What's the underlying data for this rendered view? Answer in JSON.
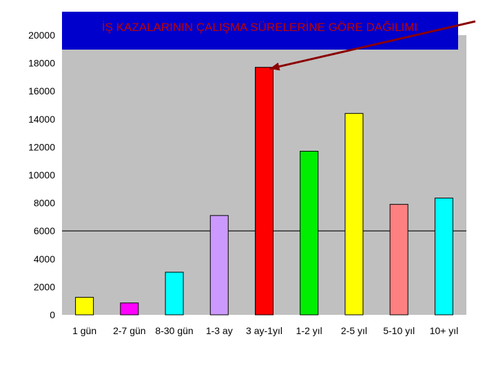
{
  "chart_data": {
    "type": "bar",
    "title": "İŞ KAZALARININ ÇALIŞMA SÜRELERİNE GÖRE DAĞILIMI",
    "categories": [
      "1 gün",
      "2-7 gün",
      "8-30 gün",
      "1-3 ay",
      "3 ay-1yıl",
      "1-2 yıl",
      "2-5 yıl",
      "5-10 yıl",
      "10+ yıl"
    ],
    "values": [
      1250,
      850,
      3050,
      7100,
      17700,
      11700,
      14400,
      7900,
      8350
    ],
    "bar_colors": [
      "#ffff00",
      "#ff00ff",
      "#00ffff",
      "#cc99ff",
      "#ff0000",
      "#00ee00",
      "#ffff00",
      "#ff8080",
      "#00ffff"
    ],
    "ylim": [
      0,
      20000
    ],
    "yticks": [
      "0",
      "2000",
      "4000",
      "6000",
      "8000",
      "10000",
      "12000",
      "14000",
      "16000",
      "18000",
      "20000"
    ],
    "gridlines": [
      6000
    ],
    "plot_background": "#c0c0c0",
    "title_background": "#0000cc",
    "title_color": "#c00000",
    "arrow_color": "#8b0000",
    "arrow_target_category": "3 ay-1yıl",
    "xlabel": "",
    "ylabel": ""
  }
}
